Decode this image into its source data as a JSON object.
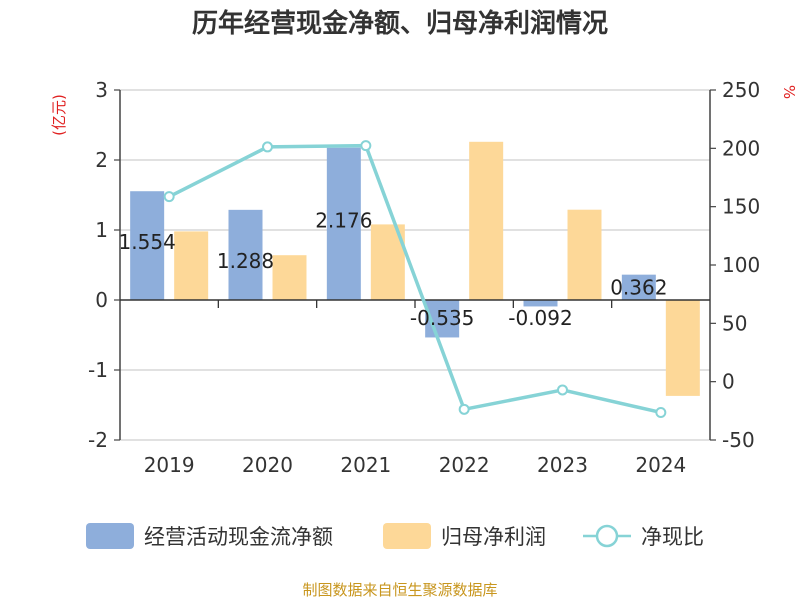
{
  "title": "历年经营现金净额、归母净利润情况",
  "source": "制图数据来自恒生聚源数据库",
  "chart_data": {
    "type": "bar",
    "title": "历年经营现金净额、归母净利润情况",
    "categories": [
      "2019",
      "2020",
      "2021",
      "2022",
      "2023",
      "2024"
    ],
    "y_left": {
      "unit_label": "(亿元)",
      "ylim": [
        -2,
        3
      ],
      "ticks": [
        "3",
        "2",
        "1",
        "0",
        "-1",
        "-2"
      ]
    },
    "y_right": {
      "unit_label": "%",
      "ylim": [
        -50,
        250
      ],
      "ticks": [
        "250",
        "200",
        "150",
        "100",
        "50",
        "0",
        "-50"
      ]
    },
    "grid": true,
    "legend_placement": "bottom",
    "series": [
      {
        "name": "经营活动现金流净额",
        "kind": "bar",
        "axis": "left",
        "color": "#8eaedb",
        "values": [
          1.554,
          1.288,
          2.176,
          -0.535,
          -0.092,
          0.362
        ],
        "labels": [
          "1.554",
          "1.288",
          "2.176",
          "-0.535",
          "-0.092",
          "0.362"
        ]
      },
      {
        "name": "归母净利润",
        "kind": "bar",
        "axis": "left",
        "color": "#fdd898",
        "values": [
          0.98,
          0.64,
          1.08,
          2.26,
          1.29,
          -1.37
        ]
      },
      {
        "name": "净现比",
        "kind": "line",
        "axis": "right",
        "color": "#86d3d6",
        "values": [
          158.6,
          201.2,
          202.3,
          -23.7,
          -7.1,
          -26.4
        ]
      }
    ]
  }
}
